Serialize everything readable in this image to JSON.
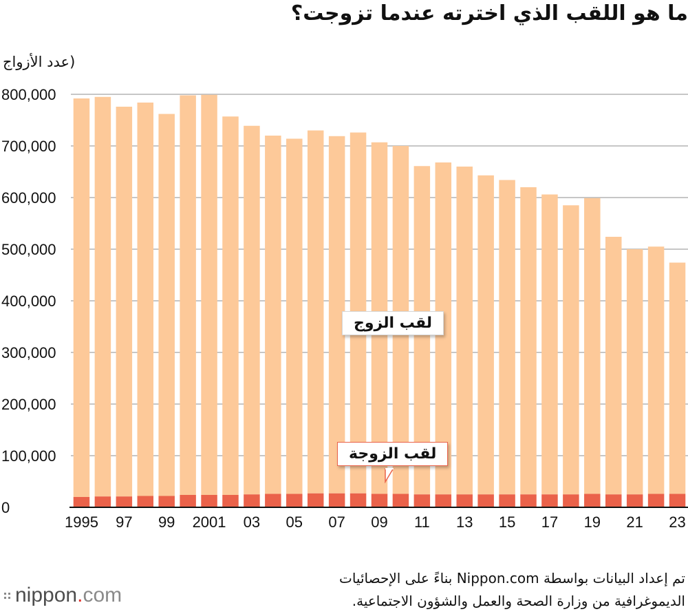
{
  "title": "ما هو اللقب الذي اخترته عندما تزوجت؟",
  "unit_label": "(عدد الأزواج",
  "source_line1": "تم إعداد البيانات بواسطة Nippon.com بناءً على الإحصائيات",
  "source_line2": "الديموغرافية من وزارة الصحة والعمل والشؤون الاجتماعية.",
  "logo": {
    "dots": "::",
    "nippon": "nippon",
    "dot": ".",
    "com": "com"
  },
  "colors": {
    "husband": "#fdc999",
    "wife": "#ea624a",
    "grid": "#b3b3b3"
  },
  "chart_data": {
    "type": "bar",
    "stacked": true,
    "years": [
      1995,
      1996,
      1997,
      1998,
      1999,
      2000,
      2001,
      2002,
      2003,
      2004,
      2005,
      2006,
      2007,
      2008,
      2009,
      2010,
      2011,
      2012,
      2013,
      2014,
      2015,
      2016,
      2017,
      2018,
      2019,
      2020,
      2021,
      2022,
      2023
    ],
    "x_tick_labels": [
      "1995",
      "",
      "97",
      "",
      "99",
      "",
      "2001",
      "",
      "03",
      "",
      "05",
      "",
      "07",
      "",
      "09",
      "",
      "11",
      "",
      "13",
      "",
      "15",
      "",
      "17",
      "",
      "19",
      "",
      "21",
      "",
      "23"
    ],
    "series": [
      {
        "name": "لقب الزوج",
        "key": "husband",
        "values": [
          772000,
          774000,
          755000,
          762000,
          740000,
          774000,
          775000,
          733000,
          714000,
          694000,
          688000,
          703000,
          692000,
          699000,
          681000,
          674000,
          636000,
          643000,
          635000,
          618000,
          609000,
          595000,
          581000,
          560000,
          573000,
          499000,
          475000,
          479000,
          448000
        ]
      },
      {
        "name": "لقب الزوجة",
        "key": "wife",
        "values": [
          20000,
          21000,
          21000,
          22000,
          22000,
          24000,
          24000,
          24000,
          25000,
          26000,
          26000,
          27000,
          27000,
          27000,
          26000,
          26000,
          25000,
          25000,
          25000,
          25000,
          25000,
          25000,
          25000,
          25000,
          26000,
          25000,
          25000,
          26000,
          26000
        ]
      }
    ],
    "y_ticks": [
      "0",
      "100,000",
      "200,000",
      "300,000",
      "400,000",
      "500,000",
      "600,000",
      "700,000",
      "800,000"
    ],
    "ylim": [
      0,
      800000
    ],
    "grid": true
  }
}
